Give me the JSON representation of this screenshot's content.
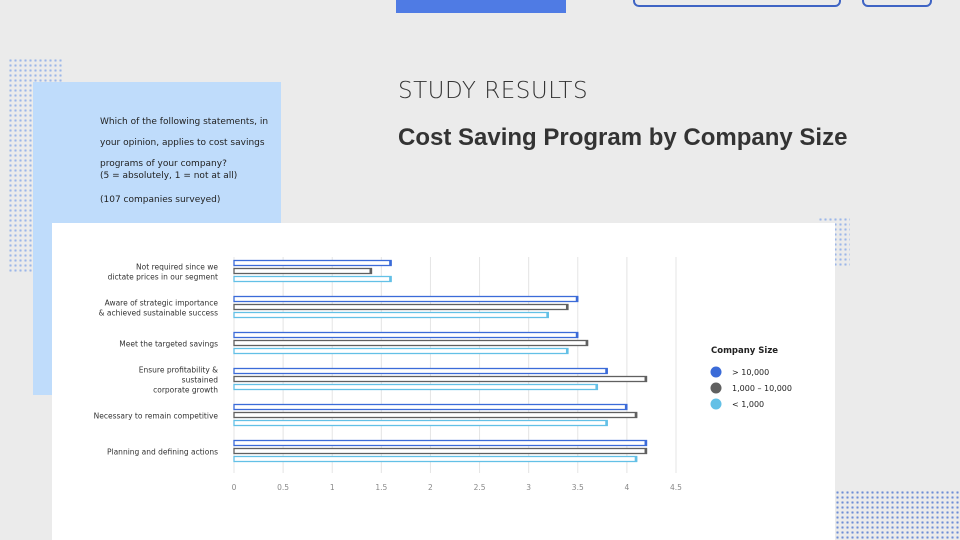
{
  "header": {
    "study_results": "STUDY RESULTS",
    "main_title": "Cost Saving Program by Company Size"
  },
  "question": {
    "lines": [
      "Which of the following statements, in",
      "your opinion, applies to cost savings",
      "programs of your company?"
    ],
    "scale": "(5 = absolutely, 1 = not at all)",
    "sample": "(107 companies surveyed)"
  },
  "colors": {
    "large": "#3b6bd8",
    "mid": "#606060",
    "small": "#63c0e6",
    "panel": "#bfdcfb",
    "accent": "#4f7be4"
  },
  "chart_data": {
    "type": "bar",
    "orientation": "horizontal",
    "categories": [
      "Not required since we dictate prices in our segment",
      "Aware of strategic importance & achieved sustainable success",
      "Meet the targeted savings",
      "Ensure profitability & sustained corporate growth",
      "Necessary to remain competitive",
      "Planning and defining actions"
    ],
    "category_lines": [
      [
        "Not required since we",
        "dictate prices in our segment"
      ],
      [
        "Aware of strategic importance",
        "& achieved sustainable success"
      ],
      [
        "Meet the targeted savings"
      ],
      [
        "Ensure profitability &",
        "sustained",
        "corporate growth"
      ],
      [
        "Necessary to remain competitive"
      ],
      [
        "Planning and defining actions"
      ]
    ],
    "series": [
      {
        "name": "> 10,000",
        "values": [
          1.6,
          3.5,
          3.5,
          3.8,
          4.0,
          4.2
        ]
      },
      {
        "name": "1,000 – 10,000",
        "values": [
          1.4,
          3.4,
          3.6,
          4.2,
          4.1,
          4.2
        ]
      },
      {
        "name": "< 1,000",
        "values": [
          1.6,
          3.2,
          3.4,
          3.7,
          3.8,
          4.1
        ]
      }
    ],
    "x_ticks": [
      "0",
      "0.5",
      "1",
      "1.5",
      "2",
      "2.5",
      "3",
      "3.5",
      "4",
      "4.5"
    ],
    "xlim": [
      0,
      4.5
    ],
    "legend_title": "Company Size",
    "legend_position": "right",
    "grid": true
  }
}
